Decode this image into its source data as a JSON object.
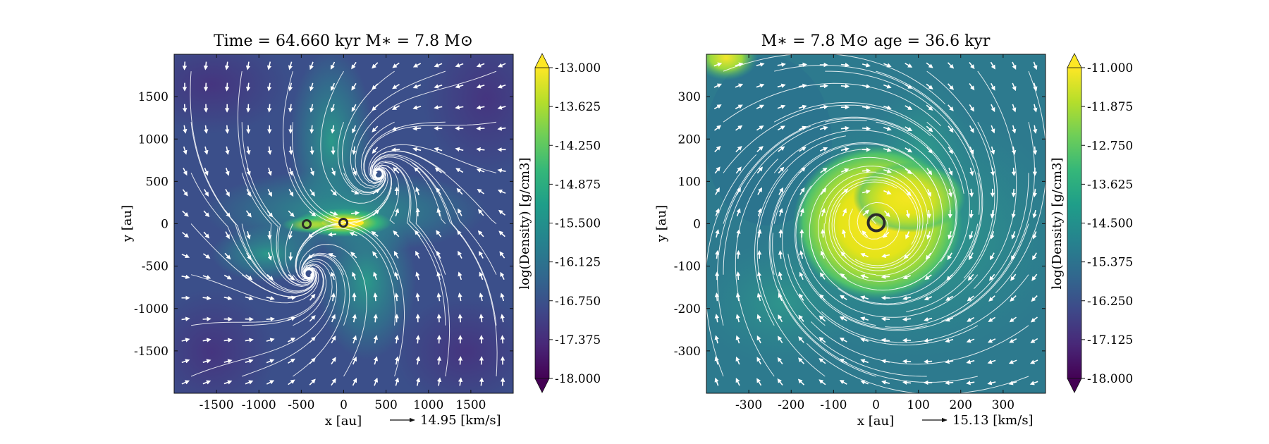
{
  "chart_data": [
    {
      "type": "heatmap",
      "title": "Time = 64.660 kyr    M∗ = 7.8 M⊙",
      "xlabel": "x [au]",
      "ylabel": "y [au]",
      "xlim": [
        -2000,
        2000
      ],
      "ylim": [
        -2000,
        2000
      ],
      "xticks": [
        -1500,
        -1000,
        -500,
        0,
        500,
        1000,
        1500
      ],
      "yticks": [
        -1500,
        -1000,
        -500,
        0,
        500,
        1000,
        1500
      ],
      "colorbar": {
        "label": "log(Density) [g/cm3]",
        "range": [
          -18.0,
          -13.0
        ],
        "ticks": [
          "-13.000",
          "-13.625",
          "-14.250",
          "-14.875",
          "-15.500",
          "-16.125",
          "-16.750",
          "-17.375",
          "-18.000"
        ],
        "colormap": "viridis",
        "extend": "both"
      },
      "velocity_key": "14.95 [km/s]",
      "sinks": [
        {
          "x": -430,
          "y": -20
        },
        {
          "x": 0,
          "y": 0
        }
      ],
      "features": "dense disk along y=0 near x in [-150, 150]; filaments extending up to y ~ 1500 around x ~ -300 to 300"
    },
    {
      "type": "heatmap",
      "title": "M∗ = 7.8 M⊙         age = 36.6 kyr",
      "xlabel": "x [au]",
      "ylabel": "y [au]",
      "xlim": [
        -400,
        400
      ],
      "ylim": [
        -400,
        400
      ],
      "xticks": [
        -300,
        -200,
        -100,
        0,
        100,
        200,
        300
      ],
      "yticks": [
        -300,
        -200,
        -100,
        0,
        100,
        200,
        300
      ],
      "colorbar": {
        "label": "log(Density) [g/cm3]",
        "range": [
          -18.0,
          -11.0
        ],
        "ticks": [
          "-11.000",
          "-11.875",
          "-12.750",
          "-13.625",
          "-14.500",
          "-15.375",
          "-16.250",
          "-17.125",
          "-18.000"
        ],
        "colormap": "viridis",
        "extend": "both"
      },
      "velocity_key": "15.13 [km/s]",
      "sinks": [
        {
          "x": 0,
          "y": 0
        }
      ],
      "features": "bright spiral disk centered at origin, radius ~ 120 au; dense clump top-left corner"
    }
  ],
  "colors": {
    "viridis": [
      "#440154",
      "#482878",
      "#3e4989",
      "#31688e",
      "#26828e",
      "#1f9e89",
      "#35b779",
      "#6ece58",
      "#b5de2b",
      "#fde725"
    ],
    "streamline": "#ffffff",
    "sink": "#2b2b2b"
  }
}
